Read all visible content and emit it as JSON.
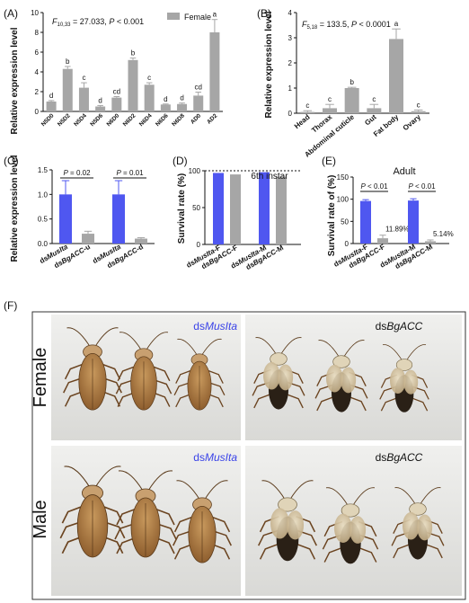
{
  "chart_data": [
    {
      "panel": "(A)",
      "type": "bar",
      "ylabel": "Relative expression level",
      "stats": "F10,33 = 27.033, P < 0.001",
      "stats_f": "F",
      "stats_sub": "10,33",
      "stats_rest": " = 27.033, ",
      "stats_p": "P",
      "stats_tail": " < 0.001",
      "legend": "Female",
      "ylim": [
        0,
        10
      ],
      "yticks": [
        0,
        2,
        4,
        6,
        8,
        10
      ],
      "categories": [
        "N5D0",
        "N5D2",
        "N5D4",
        "N5D6",
        "N6D0",
        "N6D2",
        "N6D4",
        "N6D6",
        "N6D8",
        "AD0",
        "AD2"
      ],
      "values": [
        1.0,
        4.3,
        2.4,
        0.5,
        1.4,
        5.2,
        2.7,
        0.7,
        0.75,
        1.6,
        8.0
      ],
      "errors": [
        0.1,
        0.25,
        0.5,
        0.1,
        0.1,
        0.2,
        0.2,
        0.05,
        0.1,
        0.35,
        1.3
      ],
      "letters": [
        "d",
        "b",
        "c",
        "d",
        "cd",
        "b",
        "c",
        "d",
        "d",
        "cd",
        "a"
      ],
      "color": "#a6a6a6"
    },
    {
      "panel": "(B)",
      "type": "bar",
      "ylabel": "Relative expression level",
      "stats_f": "F",
      "stats_sub": "5,18",
      "stats_rest": " = 133.5, ",
      "stats_p": "P",
      "stats_tail": " < 0.0001",
      "ylim": [
        0,
        4
      ],
      "yticks": [
        0,
        1,
        2,
        3,
        4
      ],
      "categories": [
        "Head",
        "Thorax",
        "Abdominal cuticle",
        "Gut",
        "Fat body",
        "Ovary"
      ],
      "values": [
        0.05,
        0.2,
        1.0,
        0.2,
        2.95,
        0.08
      ],
      "errors": [
        0.05,
        0.15,
        0.03,
        0.15,
        0.4,
        0.05
      ],
      "letters": [
        "c",
        "c",
        "b",
        "c",
        "a",
        "c"
      ],
      "color": "#a6a6a6"
    },
    {
      "panel": "(C)",
      "type": "bar",
      "ylabel": "Relative expression level",
      "ylim": [
        0,
        1.5
      ],
      "yticks": [
        0.0,
        0.5,
        1.0,
        1.5
      ],
      "categories": [
        "dsMusIta",
        "dsBgACC-u",
        "dsMusIta",
        "dsBgACC-d"
      ],
      "values": [
        1.0,
        0.2,
        1.0,
        0.1
      ],
      "errors": [
        0.28,
        0.05,
        0.28,
        0.02
      ],
      "colors": [
        "#4f57f0",
        "#a6a6a6",
        "#4f57f0",
        "#a6a6a6"
      ],
      "pvalues": [
        "P = 0.02",
        "P = 0.01"
      ]
    },
    {
      "panel": "(D)",
      "type": "bar",
      "title": "6th instar",
      "ylabel": "Survival rate (%)",
      "ylim": [
        0,
        100
      ],
      "yticks": [
        0,
        50,
        100
      ],
      "categories": [
        "dsMusIta-F",
        "dsBgACC-F",
        "dsMusIta-M",
        "dsBgACC-M"
      ],
      "values": [
        97,
        95,
        98,
        92
      ],
      "colors": [
        "#4f57f0",
        "#a6a6a6",
        "#4f57f0",
        "#a6a6a6"
      ],
      "reference_line": 100
    },
    {
      "panel": "(E)",
      "type": "bar",
      "title": "Adult",
      "ylabel": "Survival rate of (%)",
      "ylim": [
        0,
        150
      ],
      "yticks": [
        0,
        50,
        100,
        150
      ],
      "categories": [
        "dsMusIta-F",
        "dsBgACC-F",
        "dsMusIta-M",
        "dsBgACC-M"
      ],
      "values": [
        96,
        11.89,
        97,
        5.14
      ],
      "errors": [
        3,
        7,
        4,
        3
      ],
      "value_labels": [
        "",
        "11.89%",
        "",
        "5.14%"
      ],
      "colors": [
        "#4f57f0",
        "#a6a6a6",
        "#4f57f0",
        "#a6a6a6"
      ],
      "pvalues": [
        "P < 0.01",
        "P < 0.01"
      ]
    }
  ],
  "photos": {
    "panel": "(F)",
    "row_labels": [
      "Female",
      "Male"
    ],
    "ctrl_prefix": "ds",
    "ctrl_gene": "MusIta",
    "trt_prefix": "ds",
    "trt_gene": "BgACC"
  },
  "colors": {
    "blue": "#4f57f0",
    "gray": "#a6a6a6",
    "photo_bg": "#e2e2e0",
    "roach_brown": "#8a5a2b",
    "roach_dark": "#2a2016"
  }
}
